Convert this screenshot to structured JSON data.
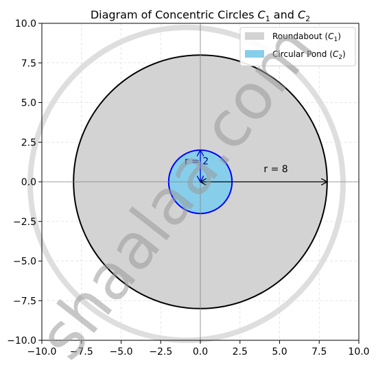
{
  "chart_data": {
    "type": "diagram",
    "title_prefix": "Diagram of Concentric Circles ",
    "title_c1": "C",
    "title_c1_sub": "1",
    "title_and": " and ",
    "title_c2": "C",
    "title_c2_sub": "2",
    "xlim": [
      -10,
      10
    ],
    "ylim": [
      -10,
      10
    ],
    "x_ticks": [
      -10,
      -7.5,
      -5,
      -2.5,
      0,
      2.5,
      5,
      7.5,
      10
    ],
    "y_ticks": [
      -10,
      -7.5,
      -5,
      -2.5,
      0,
      2.5,
      5,
      7.5,
      10
    ],
    "x_tick_labels": [
      "−10.0",
      "−7.5",
      "−5.0",
      "−2.5",
      "0.0",
      "2.5",
      "5.0",
      "7.5",
      "10.0"
    ],
    "y_tick_labels": [
      "−10.0",
      "−7.5",
      "−5.0",
      "−2.5",
      "0.0",
      "2.5",
      "5.0",
      "7.5",
      "10.0"
    ],
    "grid": true,
    "legend_position": "top-right",
    "circles": [
      {
        "name": "Roundabout",
        "legend_label": "Roundabout (",
        "symbol": "C",
        "sub": "1",
        "close": ")",
        "center": [
          0,
          0
        ],
        "radius": 8,
        "fill": "#d3d3d3",
        "stroke": "#000000"
      },
      {
        "name": "Circular Pond",
        "legend_label": "Circular Pond (",
        "symbol": "C",
        "sub": "2",
        "close": ")",
        "center": [
          0,
          0
        ],
        "radius": 2,
        "fill": "#87ceeb",
        "stroke": "#0000ff"
      }
    ],
    "annotations": [
      {
        "text": "r = 8",
        "x": 4,
        "y": 0.6,
        "color": "#000000",
        "arrow_from": [
          0,
          0
        ],
        "arrow_to": [
          8,
          0
        ]
      },
      {
        "text": "r = 2",
        "x": -1,
        "y": 1.1,
        "color": "#00008b",
        "arrow_from": [
          0,
          0
        ],
        "arrow_to": [
          0,
          2
        ]
      }
    ]
  },
  "watermark": {
    "text": "shaalaa.com"
  }
}
